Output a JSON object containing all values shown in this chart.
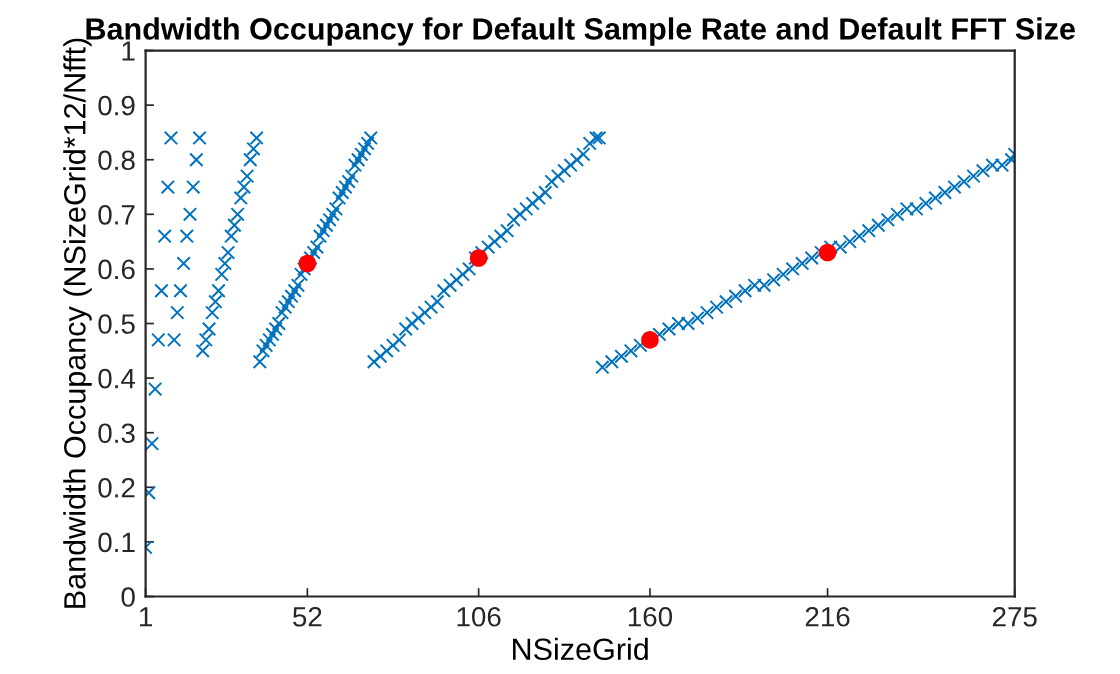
{
  "chart_data": {
    "type": "scatter",
    "title": "Bandwidth Occupancy for Default Sample Rate and Default FFT Size",
    "xlabel": "NSizeGrid",
    "ylabel": "Bandwidth Occupancy (NSizeGrid*12/Nfft)",
    "xlim": [
      1,
      275
    ],
    "xticks": [
      1,
      52,
      106,
      160,
      216,
      275
    ],
    "ylim": [
      0,
      1
    ],
    "yticks": [
      0,
      0.1,
      0.2,
      0.3,
      0.4,
      0.5,
      0.6,
      0.7,
      0.8,
      0.9,
      1
    ],
    "grid": false,
    "series": [
      {
        "marker": "cross",
        "color": "#0072bd",
        "x": [
          1,
          2,
          3,
          4,
          5,
          6,
          7,
          8,
          9,
          10,
          11,
          12,
          13,
          14,
          15,
          16,
          17,
          18,
          19,
          20,
          21,
          22,
          23,
          24,
          25,
          26,
          27,
          28,
          29,
          30,
          31,
          32,
          33,
          34,
          35,
          36,
          37,
          38,
          39,
          40,
          41,
          42,
          43,
          44,
          45,
          46,
          47,
          48,
          49,
          50,
          51,
          52,
          53,
          54,
          55,
          56,
          57,
          58,
          59,
          60,
          61,
          62,
          63,
          64,
          65,
          66,
          67,
          68,
          69,
          70,
          71,
          72,
          73,
          75,
          77,
          79,
          81,
          83,
          85,
          87,
          89,
          91,
          93,
          95,
          97,
          99,
          101,
          103,
          105,
          107,
          109,
          111,
          113,
          115,
          117,
          119,
          121,
          123,
          125,
          127,
          129,
          131,
          133,
          135,
          137,
          139,
          141,
          143,
          144,
          145,
          148,
          151,
          154,
          157,
          160,
          163,
          166,
          169,
          172,
          175,
          178,
          181,
          184,
          187,
          190,
          193,
          196,
          199,
          202,
          205,
          208,
          211,
          214,
          217,
          220,
          223,
          226,
          229,
          232,
          235,
          238,
          241,
          244,
          247,
          250,
          253,
          256,
          259,
          262,
          265,
          268,
          271,
          274,
          275
        ],
        "values": [
          0.09,
          0.19,
          0.28,
          0.38,
          0.47,
          0.56,
          0.66,
          0.75,
          0.84,
          0.47,
          0.52,
          0.56,
          0.61,
          0.66,
          0.7,
          0.75,
          0.8,
          0.84,
          0.45,
          0.47,
          0.49,
          0.52,
          0.54,
          0.56,
          0.59,
          0.61,
          0.63,
          0.66,
          0.68,
          0.7,
          0.73,
          0.75,
          0.77,
          0.8,
          0.82,
          0.84,
          0.43,
          0.45,
          0.46,
          0.47,
          0.48,
          0.49,
          0.5,
          0.52,
          0.53,
          0.54,
          0.55,
          0.56,
          0.57,
          0.59,
          0.6,
          0.61,
          0.62,
          0.63,
          0.64,
          0.66,
          0.67,
          0.68,
          0.69,
          0.7,
          0.71,
          0.73,
          0.74,
          0.75,
          0.76,
          0.77,
          0.79,
          0.8,
          0.81,
          0.82,
          0.83,
          0.84,
          0.43,
          0.44,
          0.45,
          0.46,
          0.47,
          0.49,
          0.5,
          0.51,
          0.52,
          0.53,
          0.54,
          0.56,
          0.57,
          0.58,
          0.59,
          0.6,
          0.62,
          0.63,
          0.64,
          0.65,
          0.66,
          0.67,
          0.69,
          0.7,
          0.71,
          0.72,
          0.73,
          0.74,
          0.76,
          0.77,
          0.78,
          0.79,
          0.8,
          0.81,
          0.83,
          0.84,
          0.84,
          0.42,
          0.43,
          0.44,
          0.45,
          0.46,
          0.47,
          0.48,
          0.49,
          0.5,
          0.5,
          0.51,
          0.52,
          0.53,
          0.54,
          0.55,
          0.56,
          0.57,
          0.57,
          0.58,
          0.59,
          0.6,
          0.61,
          0.62,
          0.63,
          0.64,
          0.64,
          0.65,
          0.66,
          0.67,
          0.68,
          0.69,
          0.7,
          0.71,
          0.71,
          0.72,
          0.73,
          0.74,
          0.75,
          0.76,
          0.77,
          0.78,
          0.79,
          0.79,
          0.8,
          0.81
        ]
      },
      {
        "marker": "circle",
        "color": "#ff0000",
        "x": [
          52,
          106,
          160,
          216
        ],
        "values": [
          0.61,
          0.62,
          0.47,
          0.63
        ]
      }
    ]
  }
}
